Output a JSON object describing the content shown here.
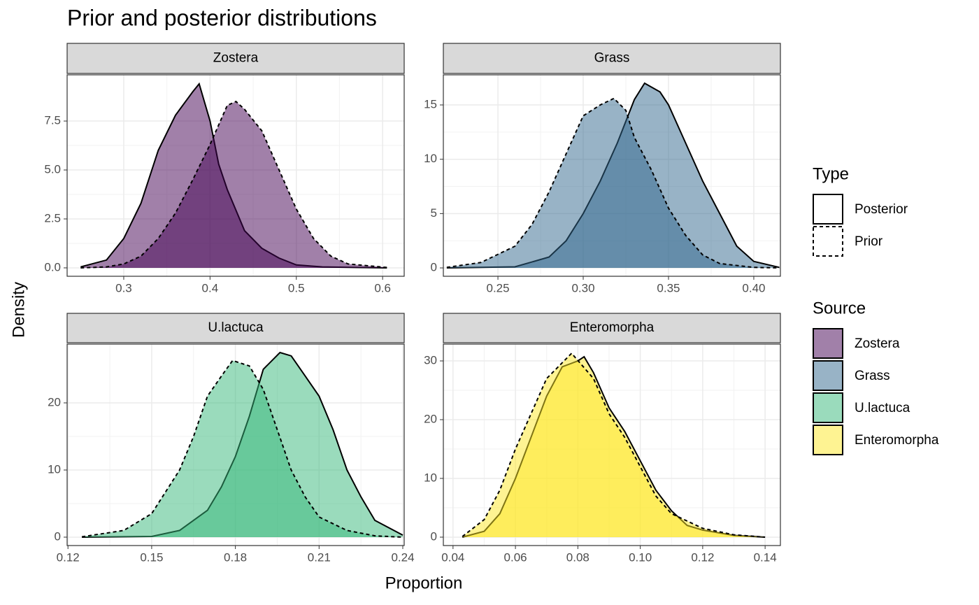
{
  "title": "Prior and posterior distributions",
  "xlabel": "Proportion",
  "ylabel": "Density",
  "legends": [
    {
      "title": "Type",
      "entries": [
        {
          "name": "Posterior",
          "linestyle": "solid"
        },
        {
          "name": "Prior",
          "linestyle": "dashed"
        }
      ]
    },
    {
      "title": "Source",
      "entries": [
        {
          "name": "Zostera",
          "color": "#440154"
        },
        {
          "name": "Grass",
          "color": "#31688e"
        },
        {
          "name": "U.lactuca",
          "color": "#35b779"
        },
        {
          "name": "Enteromorpha",
          "color": "#fde725"
        }
      ]
    }
  ],
  "fill_opacity": 0.5,
  "grid": true,
  "chart_data": [
    {
      "type": "density",
      "title": "Zostera",
      "color": "#440154",
      "xlim": [
        0.2344,
        0.625
      ],
      "ylim": [
        -0.43,
        9.86
      ],
      "xticks": [
        0.3,
        0.4,
        0.5,
        0.6
      ],
      "yticks": [
        {
          "value": 0,
          "label": "0.0"
        },
        2.5,
        {
          "value": 5,
          "label": "5.0"
        },
        7.5
      ],
      "series": [
        {
          "name": "Posterior",
          "linestyle": "solid",
          "x": [
            0.25,
            0.28,
            0.3,
            0.32,
            0.34,
            0.36,
            0.38,
            0.3874,
            0.4,
            0.41,
            0.42,
            0.44,
            0.46,
            0.48,
            0.5,
            0.53,
            0.605
          ],
          "values": [
            0.05,
            0.4,
            1.5,
            3.3,
            6.0,
            7.8,
            9.0,
            9.4,
            7.5,
            5.3,
            4.0,
            1.9,
            1.0,
            0.5,
            0.15,
            0.05,
            0
          ]
        },
        {
          "name": "Prior",
          "linestyle": "dashed",
          "x": [
            0.25,
            0.28,
            0.3,
            0.32,
            0.34,
            0.36,
            0.38,
            0.4,
            0.42,
            0.43,
            0.44,
            0.46,
            0.48,
            0.5,
            0.52,
            0.54,
            0.56,
            0.605
          ],
          "values": [
            0.0,
            0.05,
            0.2,
            0.6,
            1.5,
            2.8,
            4.5,
            6.3,
            8.3,
            8.5,
            8.1,
            7.0,
            5.0,
            3.0,
            1.5,
            0.6,
            0.2,
            0.02
          ]
        }
      ]
    },
    {
      "type": "density",
      "title": "Grass",
      "color": "#31688e",
      "xlim": [
        0.218,
        0.4156
      ],
      "ylim": [
        -0.77,
        17.77
      ],
      "xticks": [
        0.25,
        {
          "value": 0.3,
          "label": "0.30"
        },
        0.35,
        {
          "value": 0.4,
          "label": "0.40"
        }
      ],
      "yticks": [
        0,
        5,
        10,
        15
      ],
      "series": [
        {
          "name": "Posterior",
          "linestyle": "solid",
          "x": [
            0.22,
            0.26,
            0.28,
            0.29,
            0.3,
            0.31,
            0.32,
            0.33,
            0.336,
            0.345,
            0.35,
            0.36,
            0.37,
            0.38,
            0.39,
            0.4,
            0.415
          ],
          "values": [
            0,
            0.1,
            1.0,
            2.5,
            5.0,
            8.0,
            11.5,
            15.5,
            17,
            16.2,
            15.0,
            11.5,
            8.0,
            5.0,
            2.0,
            0.6,
            0.05
          ]
        },
        {
          "name": "Prior",
          "linestyle": "dashed",
          "x": [
            0.22,
            0.24,
            0.26,
            0.27,
            0.28,
            0.29,
            0.3,
            0.31,
            0.318,
            0.325,
            0.33,
            0.34,
            0.35,
            0.36,
            0.37,
            0.38,
            0.4,
            0.415
          ],
          "values": [
            0.05,
            0.5,
            2.0,
            4.0,
            7.0,
            10.5,
            14.0,
            15.0,
            15.6,
            14.5,
            12.0,
            9.0,
            5.5,
            3.0,
            1.2,
            0.4,
            0.05,
            0
          ]
        }
      ]
    },
    {
      "type": "density",
      "title": "U.lactuca",
      "color": "#35b779",
      "xlim": [
        0.1197,
        0.2405
      ],
      "ylim": [
        -1.25,
        28.75
      ],
      "xticks": [
        0.12,
        0.15,
        0.18,
        0.21,
        0.24
      ],
      "yticks": [
        0,
        10,
        20
      ],
      "series": [
        {
          "name": "Posterior",
          "linestyle": "solid",
          "x": [
            0.125,
            0.15,
            0.16,
            0.17,
            0.175,
            0.18,
            0.185,
            0.19,
            0.196,
            0.2,
            0.205,
            0.21,
            0.215,
            0.22,
            0.225,
            0.23,
            0.24
          ],
          "values": [
            0,
            0.1,
            1.0,
            4.0,
            7.5,
            12,
            18,
            25,
            27.5,
            27,
            24,
            21,
            16,
            10,
            6,
            2.5,
            0.3
          ]
        },
        {
          "name": "Prior",
          "linestyle": "dashed",
          "x": [
            0.125,
            0.14,
            0.15,
            0.16,
            0.165,
            0.17,
            0.175,
            0.179,
            0.185,
            0.19,
            0.195,
            0.2,
            0.205,
            0.21,
            0.22,
            0.23,
            0.24
          ],
          "values": [
            0.05,
            1.0,
            3.5,
            10,
            15,
            21,
            24,
            26.3,
            25.5,
            22,
            16,
            10,
            6,
            3,
            1.0,
            0.2,
            0
          ]
        }
      ]
    },
    {
      "type": "density",
      "title": "Enteromorpha",
      "color": "#fde725",
      "xlim": [
        0.0369,
        0.1449
      ],
      "ylim": [
        -1.43,
        32.86
      ],
      "xticks": [
        0.04,
        0.06,
        0.08,
        {
          "value": 0.1,
          "label": "0.10"
        },
        0.12,
        0.14
      ],
      "yticks": [
        0,
        10,
        20,
        30
      ],
      "series": [
        {
          "name": "Posterior",
          "linestyle": "solid",
          "x": [
            0.043,
            0.05,
            0.055,
            0.06,
            0.065,
            0.07,
            0.075,
            0.08,
            0.082,
            0.085,
            0.09,
            0.095,
            0.1,
            0.105,
            0.11,
            0.115,
            0.12,
            0.13,
            0.14
          ],
          "values": [
            0,
            1.0,
            4,
            10,
            17,
            24,
            29,
            30,
            30.7,
            28,
            22,
            18,
            13,
            8,
            4.5,
            2.0,
            1.2,
            0.3,
            0
          ]
        },
        {
          "name": "Prior",
          "linestyle": "dashed",
          "x": [
            0.043,
            0.05,
            0.055,
            0.06,
            0.065,
            0.07,
            0.078,
            0.085,
            0.09,
            0.095,
            0.1,
            0.105,
            0.11,
            0.12,
            0.13,
            0.14
          ],
          "values": [
            0.1,
            3,
            8,
            15,
            21,
            27,
            31.3,
            27,
            21,
            17,
            12,
            7,
            4,
            1.5,
            0.4,
            0
          ]
        }
      ]
    }
  ]
}
